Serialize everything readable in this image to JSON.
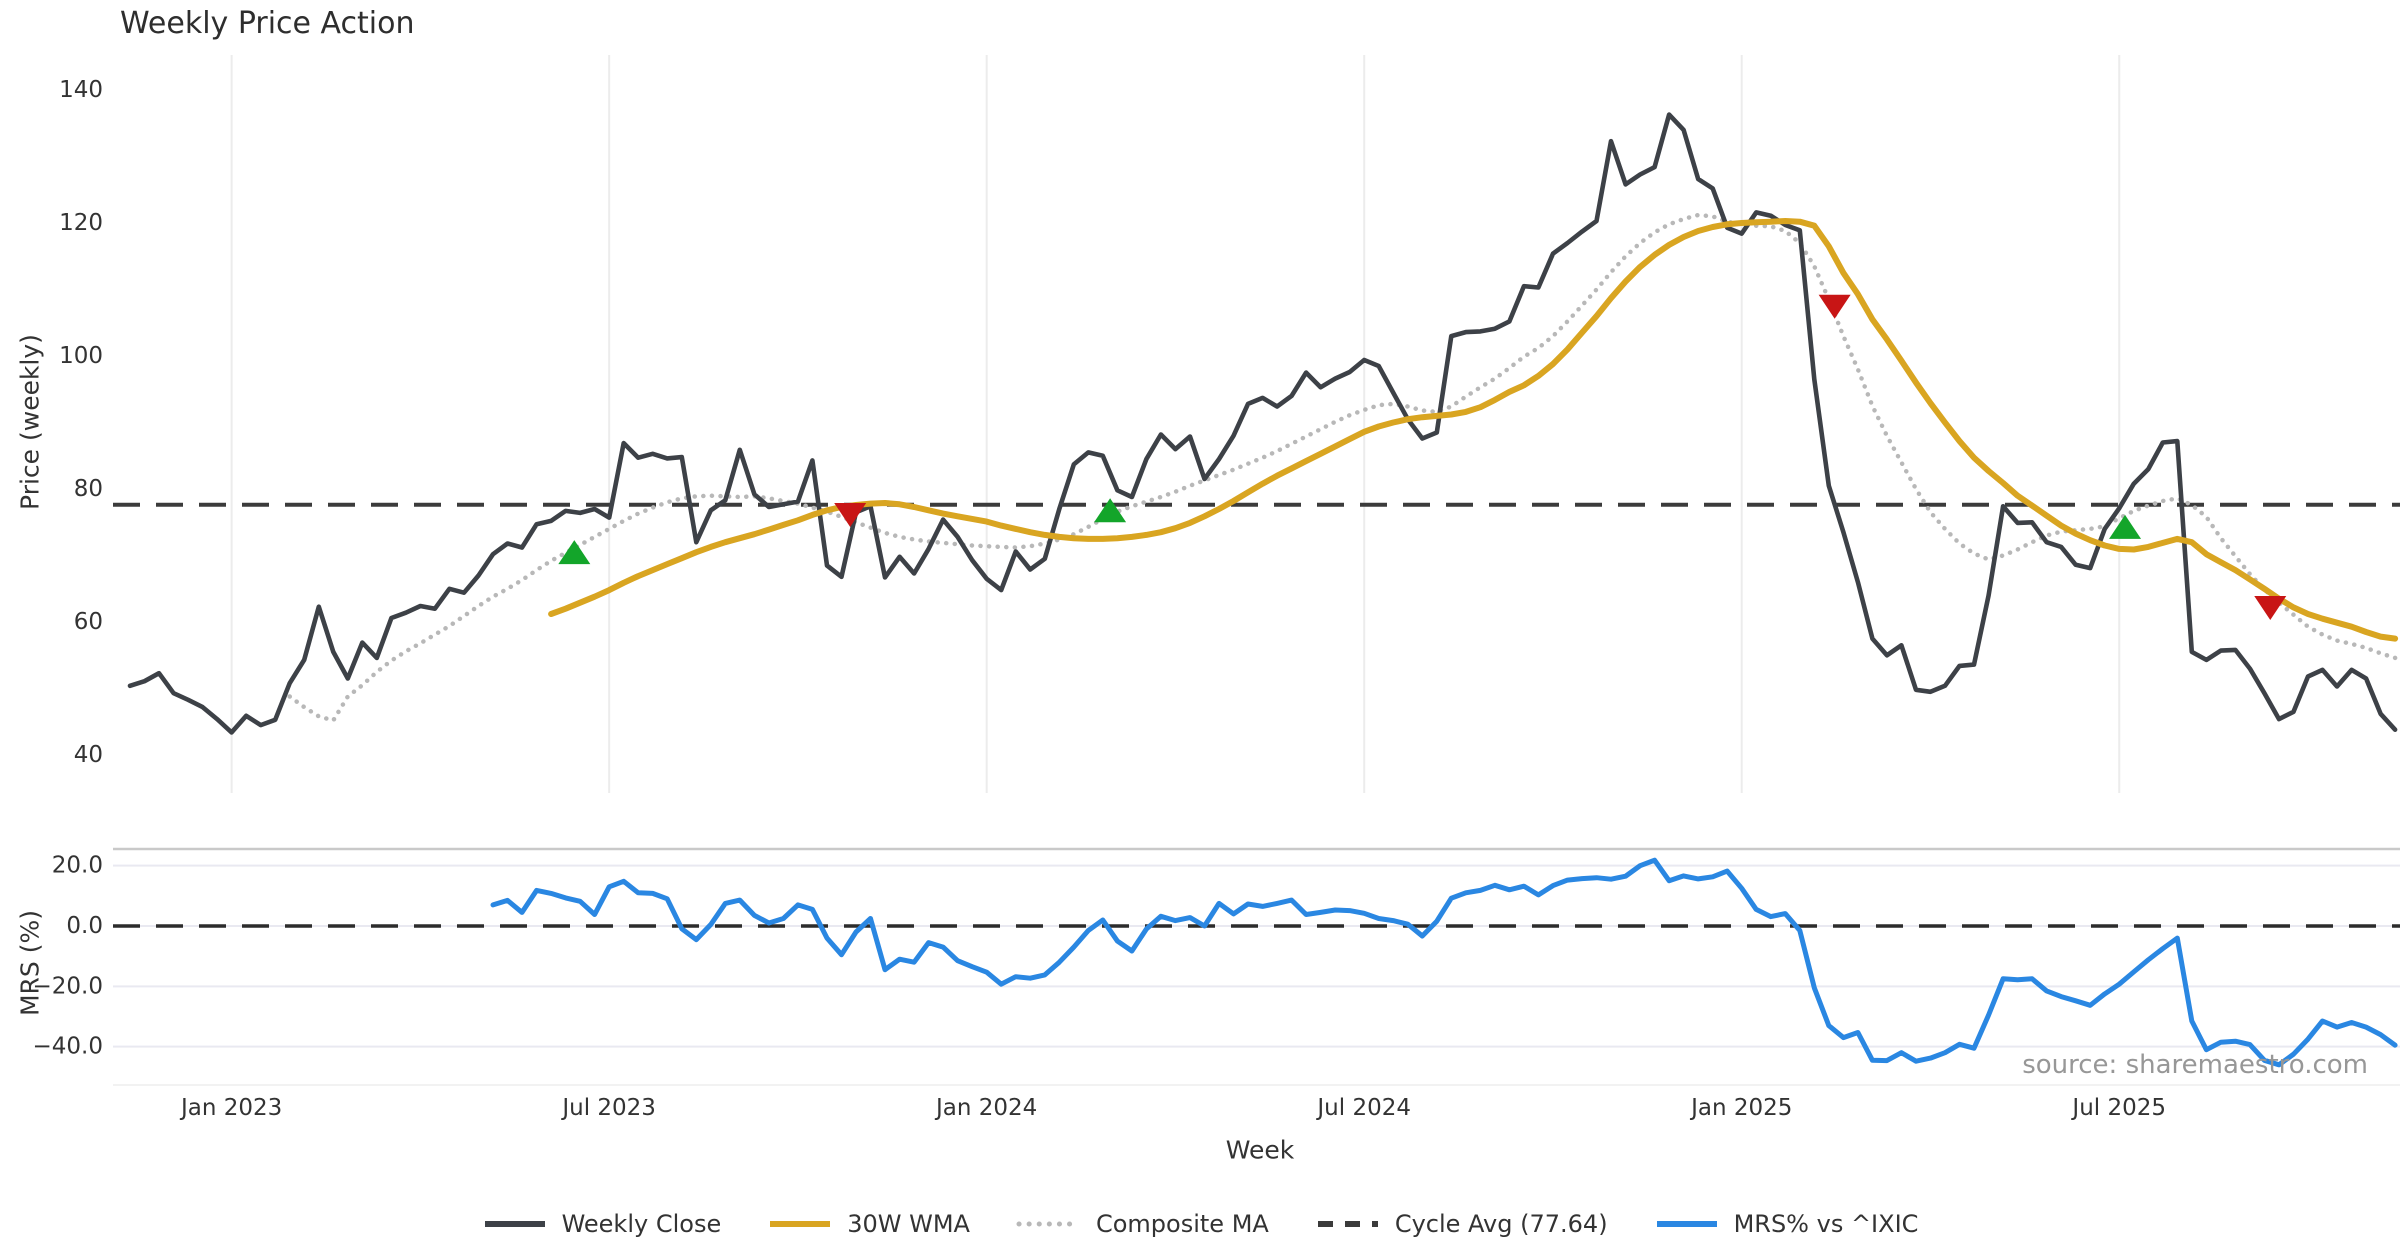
{
  "title": "Weekly Price Action",
  "watermark": "source: sharemaestro.com",
  "x_axis": {
    "label": "Week"
  },
  "price_panel": {
    "ylabel": "Price (weekly)"
  },
  "mrs_panel": {
    "ylabel": "MRS (%)"
  },
  "colors": {
    "weekly_close": "#3d4147",
    "wma": "#d9a521",
    "composite": "#b8b8b8",
    "cycle_avg": "#3b3b3b",
    "mrs": "#2a87e2",
    "buy": "#13a52a",
    "sell": "#c81515",
    "grid": "#ececec",
    "mrs_grid": "#e9e9f1",
    "panel_border": "#c9c9c9",
    "tick_text": "#333333"
  },
  "legend": [
    {
      "label": "Weekly Close",
      "color": "#3d4147",
      "style": "solid"
    },
    {
      "label": "30W WMA",
      "color": "#d9a521",
      "style": "solid"
    },
    {
      "label": "Composite MA",
      "color": "#b8b8b8",
      "style": "dotted"
    },
    {
      "label": "Cycle Avg (77.64)",
      "color": "#3b3b3b",
      "style": "dashed"
    },
    {
      "label": "MRS% vs ^IXIC",
      "color": "#2a87e2",
      "style": "solid"
    }
  ],
  "chart_data": [
    {
      "type": "line",
      "panel": "price",
      "title": "Weekly Price Action",
      "ylabel": "Price (weekly)",
      "ylim": [
        36,
        143
      ],
      "ytick_values": [
        140,
        120,
        100,
        80,
        60,
        40
      ],
      "ytick_labels": [
        "140",
        "120",
        "100",
        "80",
        "60",
        "40"
      ],
      "x_ticks": [
        {
          "week": 7,
          "label": "Jan 2023"
        },
        {
          "week": 33,
          "label": "Jul 2023"
        },
        {
          "week": 59,
          "label": "Jan 2024"
        },
        {
          "week": 85,
          "label": "Jul 2024"
        },
        {
          "week": 111,
          "label": "Jan 2025"
        },
        {
          "week": 137,
          "label": "Jul 2025"
        }
      ],
      "cycle_avg": 77.64,
      "series": [
        {
          "name": "Weekly Close",
          "color": "#3d4147",
          "style": "solid",
          "start_week": 0,
          "values": [
            50.4,
            51.1,
            52.3,
            49.3,
            48.3,
            47.2,
            45.4,
            43.4,
            45.9,
            44.5,
            45.3,
            50.8,
            54.3,
            62.3,
            55.5,
            51.5,
            56.9,
            54.6,
            60.6,
            61.4,
            62.4,
            62.0,
            65.0,
            64.4,
            67.0,
            70.2,
            71.8,
            71.2,
            74.7,
            75.2,
            76.7,
            76.4,
            77.0,
            75.7,
            86.9,
            84.7,
            85.3,
            84.6,
            84.8,
            72.0,
            76.8,
            78.3,
            85.9,
            79.2,
            77.3,
            77.7,
            78.1,
            84.3,
            68.5,
            66.8,
            76.5,
            77.4,
            66.7,
            69.8,
            67.3,
            71.0,
            75.4,
            72.8,
            69.3,
            66.5,
            64.8,
            70.6,
            67.9,
            69.5,
            77.0,
            83.7,
            85.5,
            85.0,
            79.8,
            78.8,
            84.5,
            88.2,
            86.0,
            87.9,
            81.5,
            84.5,
            88.0,
            92.8,
            93.7,
            92.4,
            94.0,
            97.5,
            95.3,
            96.6,
            97.6,
            99.4,
            98.5,
            94.5,
            90.5,
            87.6,
            88.5,
            103.0,
            103.6,
            103.7,
            104.1,
            105.2,
            110.5,
            110.3,
            115.4,
            117.0,
            118.7,
            120.3,
            132.3,
            125.8,
            127.3,
            128.4,
            136.3,
            134.0,
            126.6,
            125.2,
            119.3,
            118.4,
            121.6,
            121.1,
            119.7,
            118.9,
            96.5,
            80.5,
            73.5,
            66.0,
            57.5,
            55.0,
            56.5,
            49.8,
            49.5,
            50.4,
            53.4,
            53.6,
            64.0,
            77.4,
            74.9,
            75.0,
            72.0,
            71.3,
            68.6,
            68.1,
            74.0,
            77.1,
            80.8,
            83.0,
            87.0,
            87.2,
            55.5,
            54.3,
            55.7,
            55.8,
            53.0,
            49.3,
            45.4,
            46.5,
            51.8,
            52.8,
            50.3,
            52.8,
            51.5,
            46.2,
            43.8
          ]
        },
        {
          "name": "30W WMA",
          "color": "#d9a521",
          "style": "solid",
          "start_week": 29,
          "values": [
            61.2,
            62.0,
            62.9,
            63.8,
            64.8,
            65.9,
            66.9,
            67.8,
            68.7,
            69.6,
            70.5,
            71.3,
            72.0,
            72.6,
            73.2,
            73.9,
            74.6,
            75.3,
            76.1,
            76.8,
            77.3,
            77.6,
            77.8,
            77.9,
            77.7,
            77.3,
            76.8,
            76.3,
            75.9,
            75.5,
            75.1,
            74.5,
            74.0,
            73.5,
            73.1,
            72.8,
            72.6,
            72.5,
            72.5,
            72.6,
            72.8,
            73.1,
            73.5,
            74.1,
            74.9,
            75.9,
            77.0,
            78.2,
            79.5,
            80.8,
            82.0,
            83.1,
            84.2,
            85.3,
            86.4,
            87.5,
            88.6,
            89.4,
            90.0,
            90.5,
            90.8,
            91.0,
            91.2,
            91.6,
            92.3,
            93.4,
            94.6,
            95.6,
            97.0,
            98.8,
            101.0,
            103.5,
            106.0,
            108.7,
            111.2,
            113.4,
            115.2,
            116.7,
            117.9,
            118.8,
            119.4,
            119.8,
            120.0,
            120.1,
            120.2,
            120.3,
            120.2,
            119.6,
            116.5,
            112.5,
            109.3,
            105.5,
            102.5,
            99.3,
            96.0,
            92.9,
            90.0,
            87.2,
            84.7,
            82.7,
            80.9,
            79.0,
            77.5,
            76.0,
            74.5,
            73.3,
            72.3,
            71.5,
            71.0,
            70.9,
            71.3,
            71.9,
            72.5,
            72.0,
            70.2,
            69.0,
            67.8,
            66.4,
            65.0,
            63.5,
            62.2,
            61.2,
            60.5,
            59.9,
            59.3,
            58.5,
            57.8,
            57.5
          ]
        },
        {
          "name": "Composite MA",
          "color": "#b8b8b8",
          "style": "dotted",
          "start_week": 11,
          "values": [
            48.8,
            47.2,
            45.8,
            45.2,
            48.8,
            50.5,
            52.5,
            54.2,
            55.6,
            56.8,
            58.1,
            59.4,
            60.9,
            62.4,
            63.8,
            65.0,
            66.3,
            67.8,
            69.2,
            70.4,
            71.6,
            72.8,
            74.0,
            75.2,
            76.3,
            77.2,
            78.0,
            78.6,
            78.9,
            79.0,
            78.9,
            78.8,
            78.9,
            78.6,
            78.2,
            77.8,
            77.2,
            76.6,
            75.8,
            75.0,
            74.2,
            73.4,
            72.8,
            72.4,
            72.1,
            71.9,
            71.7,
            71.5,
            71.4,
            71.3,
            71.2,
            71.4,
            71.8,
            72.4,
            73.2,
            74.3,
            75.5,
            76.6,
            77.4,
            78.1,
            78.8,
            79.6,
            80.5,
            81.3,
            82.1,
            82.9,
            83.8,
            84.7,
            85.7,
            86.8,
            87.9,
            89.0,
            90.1,
            91.1,
            91.9,
            92.6,
            92.8,
            92.4,
            91.8,
            91.6,
            92.4,
            93.9,
            95.3,
            96.6,
            98.2,
            99.9,
            101.2,
            103.0,
            105.2,
            107.6,
            110.0,
            112.6,
            115.0,
            117.0,
            118.6,
            119.8,
            120.6,
            121.2,
            121.0,
            120.2,
            119.8,
            119.6,
            119.5,
            118.8,
            117.0,
            113.5,
            108.5,
            103.0,
            98.0,
            92.5,
            88.0,
            84.0,
            80.0,
            76.5,
            74.0,
            71.8,
            70.3,
            69.4,
            70.0,
            70.9,
            72.0,
            73.0,
            73.6,
            73.8,
            74.0,
            74.4,
            75.6,
            76.7,
            77.5,
            78.2,
            78.6,
            77.6,
            75.8,
            72.6,
            69.9,
            67.2,
            64.9,
            62.9,
            61.1,
            59.3,
            58.1,
            57.2,
            56.7,
            56.1,
            55.3,
            54.6
          ]
        }
      ],
      "markers": {
        "buy_signals": [
          [
            30.6,
            70.2
          ],
          [
            67.5,
            76.5
          ],
          [
            137.4,
            74.0
          ]
        ],
        "sell_signals": [
          [
            49.6,
            76.4
          ],
          [
            117.4,
            107.7
          ],
          [
            147.4,
            62.4
          ]
        ]
      }
    },
    {
      "type": "line",
      "panel": "mrs",
      "ylabel": "MRS (%)",
      "ylim": [
        -47,
        26
      ],
      "ytick_values": [
        20,
        0,
        -20,
        -40
      ],
      "ytick_labels": [
        "20.0",
        "0.0",
        "−20.0",
        "−40.0"
      ],
      "zero_line_dashed": true,
      "series": [
        {
          "name": "MRS% vs ^IXIC",
          "color": "#2a87e2",
          "style": "solid",
          "start_week": 25,
          "values": [
            7.0,
            8.5,
            4.5,
            11.8,
            10.8,
            9.3,
            8.2,
            3.8,
            13.0,
            14.8,
            11.0,
            10.8,
            9.0,
            -0.9,
            -4.5,
            0.5,
            7.5,
            8.6,
            3.5,
            1.0,
            2.5,
            7.0,
            5.5,
            -4.0,
            -9.5,
            -2.0,
            2.5,
            -14.5,
            -11.0,
            -12.0,
            -5.5,
            -7.0,
            -11.5,
            -13.5,
            -15.3,
            -19.3,
            -16.8,
            -17.3,
            -16.2,
            -12.0,
            -7.0,
            -1.5,
            2.0,
            -5.0,
            -8.3,
            -1.0,
            3.2,
            1.8,
            2.8,
            0.0,
            7.5,
            4.0,
            7.3,
            6.5,
            7.5,
            8.6,
            3.8,
            4.5,
            5.3,
            5.1,
            4.2,
            2.5,
            1.8,
            0.6,
            -3.3,
            1.6,
            9.2,
            11.0,
            11.8,
            13.5,
            12.0,
            13.2,
            10.3,
            13.4,
            15.2,
            15.7,
            16.0,
            15.5,
            16.5,
            20.0,
            21.8,
            15.0,
            16.6,
            15.6,
            16.3,
            18.2,
            12.5,
            5.5,
            3.1,
            4.1,
            -1.5,
            -20.5,
            -33.0,
            -37.0,
            -35.3,
            -44.5,
            -44.6,
            -42.0,
            -44.8,
            -43.8,
            -42.0,
            -39.2,
            -40.5,
            -29.5,
            -17.5,
            -17.8,
            -17.5,
            -21.5,
            -23.4,
            -24.8,
            -26.3,
            -22.5,
            -19.3,
            -15.2,
            -11.2,
            -7.5,
            -4.0,
            -31.5,
            -41.0,
            -38.5,
            -38.2,
            -39.3,
            -44.5,
            -46.0,
            -42.5,
            -37.5,
            -31.5,
            -33.5,
            -32.0,
            -33.5,
            -36.0,
            -39.5
          ]
        }
      ]
    }
  ]
}
